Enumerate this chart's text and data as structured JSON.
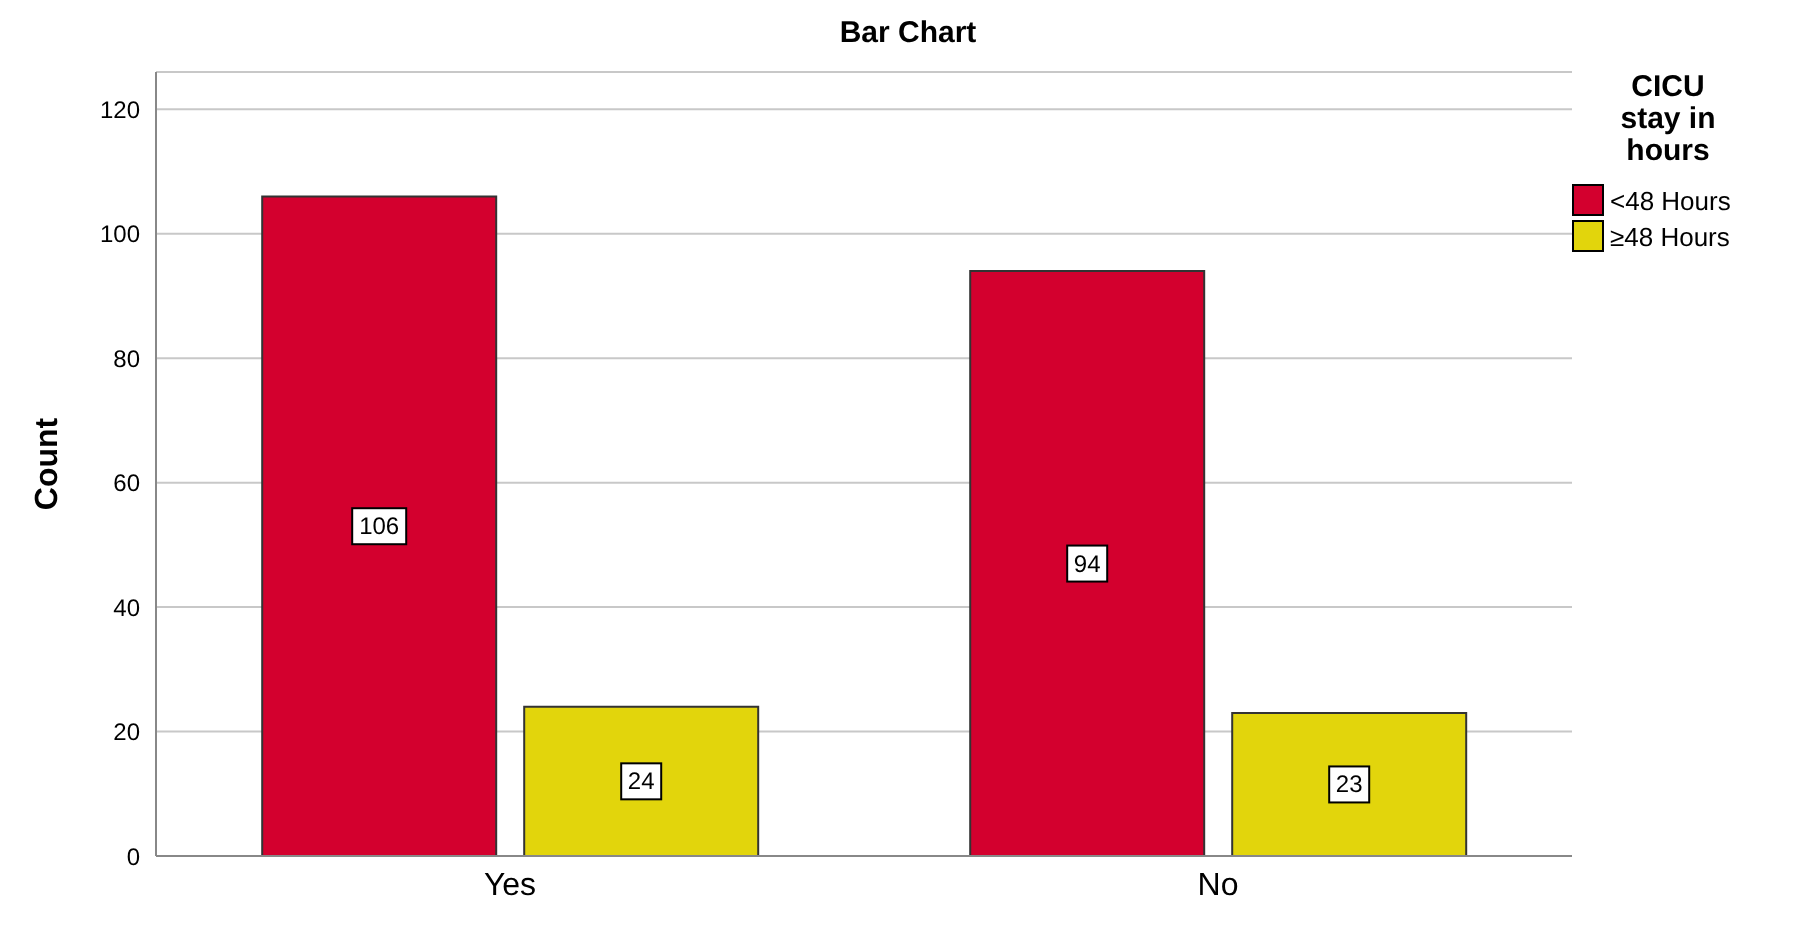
{
  "chart_data": {
    "type": "bar",
    "title": "Bar Chart",
    "ylabel": "Count",
    "legend_title": "CICU stay in hours",
    "categories": [
      "Yes",
      "No"
    ],
    "series": [
      {
        "name": "<48 Hours",
        "color": "#d3002e",
        "values": [
          106,
          94
        ]
      },
      {
        "name": "≥48 Hours",
        "color": "#e2d50c",
        "values": [
          24,
          23
        ]
      }
    ],
    "ylim": [
      0,
      126
    ],
    "yticks": [
      0,
      20,
      40,
      60,
      80,
      100,
      120
    ],
    "grid": "y",
    "legend": "top right",
    "data_labels": true
  }
}
